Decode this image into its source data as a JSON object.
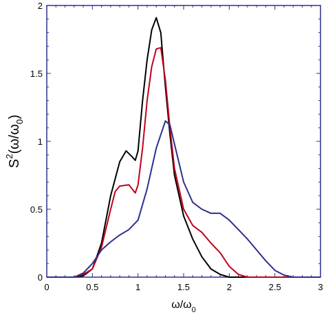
{
  "chart_data": {
    "type": "line",
    "xlabel": {
      "main": "ω/ω",
      "sub": "0"
    },
    "ylabel": {
      "base": "S",
      "sup": "2",
      "open": "(ω/ω",
      "sub": "0",
      "close": ")"
    },
    "xlim": [
      0,
      3
    ],
    "ylim": [
      0,
      2
    ],
    "x_ticks": [
      "0",
      "0.5",
      "1",
      "1.5",
      "2",
      "2.5",
      "3"
    ],
    "y_ticks": [
      "0",
      "0.5",
      "1",
      "1.5",
      "2"
    ],
    "grid": false,
    "legend": "none",
    "frame_color": "#2a2f8f",
    "series": [
      {
        "color": "#000000",
        "points": [
          [
            0,
            0
          ],
          [
            0.3,
            0
          ],
          [
            0.4,
            0.01
          ],
          [
            0.5,
            0.06
          ],
          [
            0.6,
            0.25
          ],
          [
            0.7,
            0.6
          ],
          [
            0.8,
            0.85
          ],
          [
            0.87,
            0.93
          ],
          [
            0.93,
            0.89
          ],
          [
            0.97,
            0.86
          ],
          [
            1.0,
            0.93
          ],
          [
            1.05,
            1.3
          ],
          [
            1.1,
            1.6
          ],
          [
            1.15,
            1.82
          ],
          [
            1.2,
            1.91
          ],
          [
            1.25,
            1.8
          ],
          [
            1.3,
            1.4
          ],
          [
            1.35,
            1.05
          ],
          [
            1.4,
            0.75
          ],
          [
            1.5,
            0.45
          ],
          [
            1.6,
            0.28
          ],
          [
            1.7,
            0.15
          ],
          [
            1.8,
            0.06
          ],
          [
            1.9,
            0.02
          ],
          [
            2.0,
            0
          ],
          [
            3,
            0
          ]
        ]
      },
      {
        "color": "#c0001a",
        "points": [
          [
            0,
            0
          ],
          [
            0.3,
            0
          ],
          [
            0.4,
            0.02
          ],
          [
            0.5,
            0.06
          ],
          [
            0.6,
            0.22
          ],
          [
            0.7,
            0.5
          ],
          [
            0.75,
            0.63
          ],
          [
            0.8,
            0.67
          ],
          [
            0.9,
            0.68
          ],
          [
            0.97,
            0.62
          ],
          [
            1.0,
            0.68
          ],
          [
            1.05,
            0.95
          ],
          [
            1.1,
            1.3
          ],
          [
            1.15,
            1.55
          ],
          [
            1.2,
            1.68
          ],
          [
            1.25,
            1.69
          ],
          [
            1.3,
            1.45
          ],
          [
            1.35,
            1.1
          ],
          [
            1.4,
            0.8
          ],
          [
            1.5,
            0.5
          ],
          [
            1.6,
            0.38
          ],
          [
            1.7,
            0.33
          ],
          [
            1.8,
            0.25
          ],
          [
            1.9,
            0.18
          ],
          [
            2.0,
            0.08
          ],
          [
            2.1,
            0.02
          ],
          [
            2.2,
            0
          ],
          [
            3,
            0
          ]
        ]
      },
      {
        "color": "#2a2f8f",
        "points": [
          [
            0,
            0
          ],
          [
            0.3,
            0
          ],
          [
            0.4,
            0.03
          ],
          [
            0.5,
            0.1
          ],
          [
            0.6,
            0.2
          ],
          [
            0.7,
            0.26
          ],
          [
            0.8,
            0.31
          ],
          [
            0.9,
            0.35
          ],
          [
            1.0,
            0.42
          ],
          [
            1.1,
            0.65
          ],
          [
            1.2,
            0.95
          ],
          [
            1.3,
            1.15
          ],
          [
            1.35,
            1.12
          ],
          [
            1.4,
            0.98
          ],
          [
            1.5,
            0.7
          ],
          [
            1.6,
            0.55
          ],
          [
            1.7,
            0.5
          ],
          [
            1.8,
            0.47
          ],
          [
            1.9,
            0.47
          ],
          [
            2.0,
            0.42
          ],
          [
            2.1,
            0.35
          ],
          [
            2.2,
            0.28
          ],
          [
            2.3,
            0.2
          ],
          [
            2.4,
            0.12
          ],
          [
            2.5,
            0.05
          ],
          [
            2.6,
            0.015
          ],
          [
            2.7,
            0
          ],
          [
            3,
            0
          ]
        ]
      }
    ]
  }
}
